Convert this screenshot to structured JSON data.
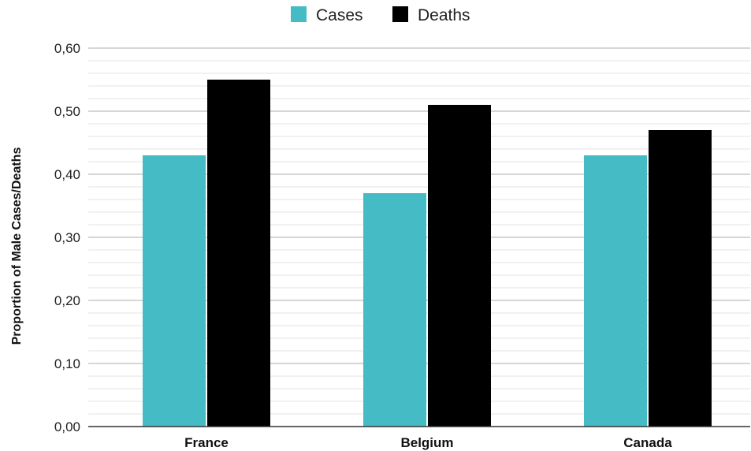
{
  "chart_data": {
    "type": "bar",
    "title": "",
    "xlabel": "",
    "ylabel": "Proportion of Male Cases/Deaths",
    "categories": [
      "France",
      "Belgium",
      "Canada"
    ],
    "series": [
      {
        "name": "Cases",
        "values": [
          0.43,
          0.37,
          0.43
        ],
        "color": "#45bcc5"
      },
      {
        "name": "Deaths",
        "values": [
          0.55,
          0.51,
          0.47
        ],
        "color": "#000000"
      }
    ],
    "ylim": [
      0,
      0.6
    ],
    "yticks": [
      "0,00",
      "0,10",
      "0,20",
      "0,30",
      "0,40",
      "0,50",
      "0,60"
    ],
    "ytick_values": [
      0,
      0.1,
      0.2,
      0.3,
      0.4,
      0.5,
      0.6
    ],
    "minor_step": 0.02,
    "grid": true,
    "legend_position": "top"
  }
}
